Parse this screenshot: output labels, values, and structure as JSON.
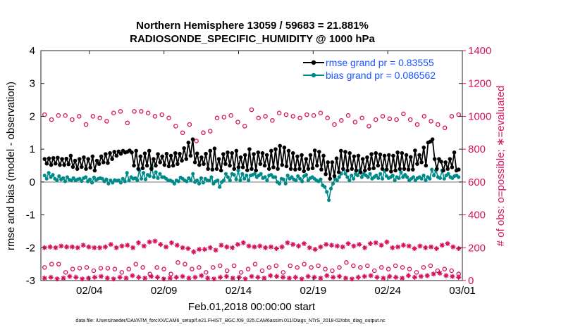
{
  "chart_data": {
    "type": "line",
    "title_line1": "Northern Hemisphere 13059 / 59683 = 21.881%",
    "title_line2": "RADIOSONDE_SPECIFIC_HUMIDITY @ 1000 hPa",
    "xlabel": "Feb.01,2018 00:00:00 start",
    "ylabel_left": "rmse and bias (model - observation)",
    "ylabel_right": "# of obs: o=possible; ∗=evaluated",
    "footnote": "data file: /Users/raeder/DAI/ATM_forcXX/CAM6_setup/f.e21.FHIST_BGC.f09_025.CAM6assim.011/Diags_NTrS_2018-02/obs_diag_output.nc",
    "x_ticks": [
      {
        "day": 3.0,
        "label": "02/04"
      },
      {
        "day": 8.0,
        "label": "02/09"
      },
      {
        "day": 13.0,
        "label": "02/14"
      },
      {
        "day": 18.0,
        "label": "02/19"
      },
      {
        "day": 23.0,
        "label": "02/24"
      },
      {
        "day": 28.0,
        "label": "03/01"
      }
    ],
    "xlim": [
      -0.25,
      28.0
    ],
    "ylim_left": [
      -3,
      4
    ],
    "ylim_right": [
      0,
      1400
    ],
    "left_ticks": [
      "-3",
      "-2",
      "-1",
      "0",
      "1",
      "2",
      "3",
      "4"
    ],
    "right_ticks": [
      "0",
      "200",
      "400",
      "600",
      "800",
      "1000",
      "1200",
      "1400"
    ],
    "colors": {
      "rmse": "#000000",
      "bias": "#008b8b",
      "obs": "#d6115c",
      "legend_text": "#1a53ff",
      "zero_line": "#a0a0a0"
    },
    "series": [
      {
        "name": "rmse grand pr = 0.83555",
        "values": [
          0.7,
          0.56,
          0.72,
          0.52,
          0.73,
          0.56,
          0.74,
          0.52,
          0.7,
          0.52,
          0.71,
          0.54,
          0.8,
          0.46,
          0.65,
          0.4,
          0.7,
          0.46,
          0.75,
          0.4,
          0.7,
          0.44,
          0.78,
          0.35,
          0.65,
          0.55,
          0.78,
          0.6,
          0.85,
          0.58,
          0.88,
          0.7,
          0.92,
          0.8,
          0.93,
          0.86,
          0.95,
          0.9,
          0.92,
          0.96,
          0.9,
          0.5,
          0.95,
          0.4,
          0.78,
          0.42,
          0.87,
          0.5,
          0.95,
          0.4,
          0.7,
          0.5,
          0.85,
          0.6,
          0.78,
          0.52,
          0.86,
          0.48,
          0.8,
          0.5,
          0.88,
          0.55,
          0.86,
          0.65,
          1.03,
          0.7,
          1.2,
          0.8,
          1.3,
          0.6,
          0.87,
          0.52,
          0.75,
          0.55,
          0.86,
          0.4,
          0.95,
          0.38,
          1.02,
          0.4,
          0.7,
          0.35,
          0.85,
          0.55,
          0.9,
          0.5,
          0.88,
          0.4,
          0.95,
          0.45,
          0.75,
          0.45,
          0.82,
          0.36,
          1.0,
          0.4,
          0.85,
          0.35,
          0.9,
          0.55,
          0.88,
          0.5,
          0.82,
          0.4,
          0.95,
          0.45,
          1.0,
          0.4,
          1.1,
          0.52,
          1.05,
          0.48,
          0.95,
          0.4,
          0.88,
          0.38,
          0.78,
          0.4,
          0.82,
          0.33,
          0.7,
          0.4,
          0.82,
          0.42,
          0.96,
          0.5,
          0.92,
          0.38,
          0.8,
          0.24,
          0.6,
          0.1,
          0.6,
          0.18,
          0.72,
          0.3,
          0.95,
          0.4,
          0.92,
          0.35,
          0.88,
          0.4,
          0.78,
          0.35,
          0.8,
          0.3,
          0.7,
          0.35,
          0.75,
          0.4,
          0.85,
          0.42,
          0.88,
          0.5,
          0.84,
          0.4,
          0.8,
          0.38,
          0.82,
          0.32,
          0.8,
          0.35,
          0.9,
          0.4,
          0.88,
          0.4,
          0.82,
          0.38,
          0.76,
          0.38,
          0.96,
          0.55,
          0.82,
          0.6,
          1.05,
          0.5,
          1.2,
          1.23,
          1.3,
          0.7,
          0.4,
          0.7,
          0.62,
          0.35,
          0.6,
          0.4,
          0.7,
          0.45,
          0.9,
          0.35,
          0.38
        ]
      },
      {
        "name": "bias grand pr = 0.086562",
        "values": [
          0.2,
          0.1,
          0.28,
          0.15,
          0.22,
          0.1,
          0.05,
          0.18,
          0.08,
          0.12,
          0.02,
          0.15,
          0.07,
          0.05,
          0.12,
          0.05,
          0.08,
          0.1,
          0.03,
          0.12,
          0.15,
          0.02,
          0.08,
          -0.02,
          0.14,
          0.06,
          0.1,
          0.12,
          0.1,
          0.02,
          0.08,
          -0.05,
          0.05,
          -0.02,
          0.06,
          0.04,
          0.05,
          -0.02,
          0.1,
          0.02,
          0.28,
          0.05,
          0.15,
          0.1,
          0.12,
          0.05,
          0.35,
          0.1,
          0.28,
          0.08,
          0.22,
          0.18,
          0.45,
          0.15,
          0.3,
          0.12,
          0.25,
          0.15,
          0.15,
          0.1,
          0.05,
          0.05,
          0.02,
          -0.05,
          0.05,
          0.02,
          0.14,
          0.1,
          0.05,
          0.02,
          0.12,
          0.05,
          0.25,
          0.0,
          0.05,
          -0.05,
          0.12,
          -0.02,
          0.1,
          0.05,
          0.05,
          0.15,
          -0.05,
          0.02,
          0.05,
          -0.15,
          0.0,
          0.05,
          0.25,
          0.15,
          0.05,
          0.25,
          0.22,
          0.08,
          0.35,
          0.05,
          0.25,
          0.1,
          0.2,
          0.05,
          0.2,
          0.22,
          0.25,
          0.15,
          0.2,
          0.25,
          0.12,
          0.15,
          0.05,
          0.2,
          0.22,
          0.15,
          0.15,
          0.0,
          -0.05,
          0.1,
          0.08,
          -0.05,
          0.2,
          0.1,
          0.15,
          0.08,
          0.05,
          0.18,
          0.1,
          0.02,
          0.18,
          0.22,
          0.05,
          0.12,
          0.15,
          0.1,
          0.05,
          0.02,
          0.08,
          -0.1,
          -0.15,
          -0.3,
          -0.55,
          -0.2,
          -0.05,
          0.1,
          0.05,
          0.15,
          0.25,
          0.4,
          0.25,
          0.15,
          0.05,
          0.2,
          0.1,
          0.25,
          0.2,
          0.35,
          0.15,
          0.25,
          0.2,
          0.15,
          0.25,
          0.1,
          0.15,
          0.2,
          0.12,
          0.25,
          0.1,
          0.35,
          0.18,
          0.12,
          0.15,
          0.2,
          0.05,
          0.15,
          0.12,
          0.3,
          0.15,
          0.22,
          0.15,
          0.05,
          0.1,
          0.15,
          0.05,
          0.12,
          0.15,
          0.1,
          0.2,
          0.05,
          0.15,
          0.1,
          0.38,
          0.2,
          0.35,
          0.15,
          0.12,
          0.35,
          0.1,
          0.2,
          0.25,
          0.15,
          0.12,
          0.18,
          0.2,
          0.15
        ]
      },
      {
        "name": "obs possible (right axis, day points)",
        "values": [
          1010,
          980,
          1005,
          1005,
          980,
          1000,
          950,
          1000,
          990,
          970,
          1020,
          1030,
          960,
          1030,
          1030,
          1020,
          1000,
          1010,
          990,
          940,
          900,
          950,
          850,
          900,
          910,
          990,
          995,
          1005,
          965,
          940,
          1040,
          990,
          1000,
          975,
          1020,
          1010,
          1000,
          990,
          1010,
          1005,
          1020,
          990,
          950,
          975,
          1005,
          965,
          990,
          940,
          980,
          1000,
          985,
          980,
          1015,
          980,
          950,
          1000,
          970,
          950,
          930,
          1000,
          1010
        ]
      },
      {
        "name": "obs possible (right axis, night points)",
        "values": [
          80,
          100,
          100,
          50,
          70,
          75,
          80,
          60,
          75,
          75,
          70,
          50,
          70,
          100,
          80,
          40,
          80,
          70,
          40,
          110,
          100,
          70,
          80,
          50,
          80,
          90,
          60,
          90,
          50,
          70,
          100,
          60,
          80,
          90,
          50,
          90,
          80,
          100,
          80,
          90,
          70,
          60,
          80,
          110,
          90,
          80,
          90,
          60,
          80,
          70,
          90,
          80,
          70,
          50,
          80,
          90,
          60,
          70,
          60,
          40
        ]
      },
      {
        "name": "obs evaluated (right axis, day points)",
        "values": [
          200,
          205,
          200,
          210,
          205,
          205,
          200,
          215,
          205,
          200,
          200,
          205,
          220,
          200,
          210,
          215,
          200,
          230,
          210,
          235,
          240,
          220,
          205,
          230,
          215,
          200,
          195,
          175,
          190,
          190,
          200,
          185,
          215,
          205,
          200,
          220,
          230,
          210,
          205,
          210,
          200,
          205,
          195,
          205,
          230,
          220,
          210,
          225,
          200,
          190,
          205,
          220,
          215,
          210,
          205,
          225,
          210,
          220,
          200,
          225,
          230,
          215,
          235,
          200,
          205,
          215,
          210,
          195,
          210,
          200,
          205,
          195,
          215,
          225,
          205,
          195
        ]
      },
      {
        "name": "obs evaluated (right axis, night points)",
        "values": [
          15,
          20,
          10,
          15,
          25,
          20,
          10,
          15,
          20,
          25,
          15,
          10,
          20,
          15,
          30,
          20,
          15,
          25,
          20,
          10,
          15,
          20,
          25,
          15,
          20,
          30,
          15,
          10,
          20,
          25,
          15,
          20,
          10,
          25,
          20,
          15,
          30,
          25,
          20,
          15,
          20,
          10,
          25,
          20,
          15,
          30,
          20,
          25,
          15,
          10,
          20,
          25,
          30,
          20,
          15,
          25,
          20,
          15,
          30,
          20,
          25,
          30,
          40,
          45,
          30,
          25,
          20
        ]
      }
    ]
  }
}
